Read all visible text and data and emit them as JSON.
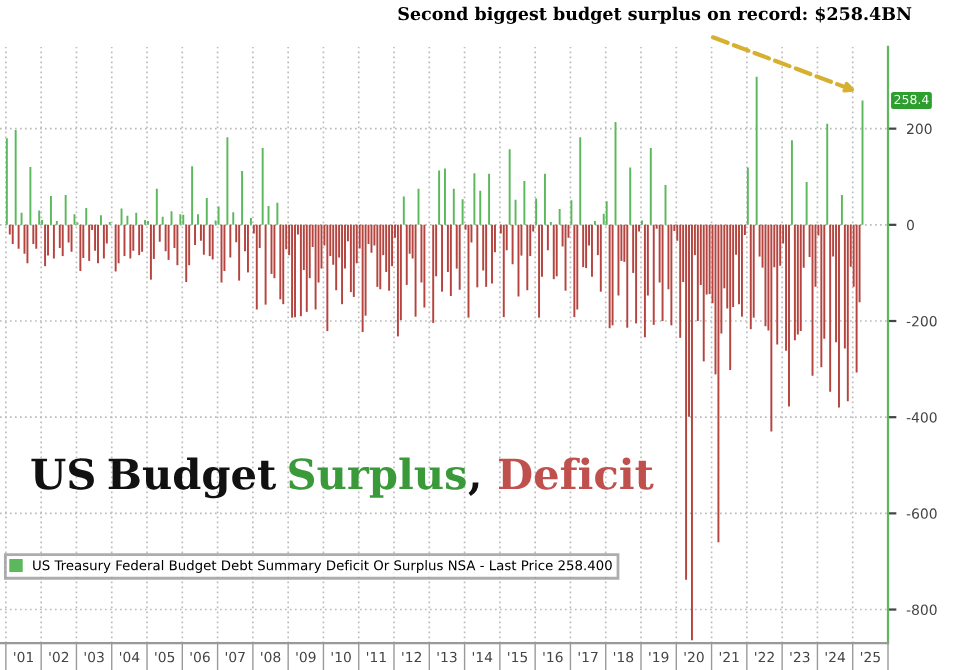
{
  "chart_data": {
    "type": "bar",
    "title": "US Budget Surplus, Deficit",
    "annotations": [
      {
        "text": "Second biggest budget surplus on record: $258.4BN",
        "x": "2025-04",
        "y": 258.4
      },
      {
        "text": "258.4",
        "x": "2025-04",
        "y": 258.4
      }
    ],
    "x": [
      "2001-01",
      "2001-02",
      "2001-03",
      "2001-04",
      "2001-05",
      "2001-06",
      "2001-07",
      "2001-08",
      "2001-09",
      "2001-10",
      "2001-11",
      "2001-12",
      "2002-01",
      "2002-02",
      "2002-03",
      "2002-04",
      "2002-05",
      "2002-06",
      "2002-07",
      "2002-08",
      "2002-09",
      "2002-10",
      "2002-11",
      "2002-12",
      "2003-01",
      "2003-02",
      "2003-03",
      "2003-04",
      "2003-05",
      "2003-06",
      "2003-07",
      "2003-08",
      "2003-09",
      "2003-10",
      "2003-11",
      "2003-12",
      "2004-01",
      "2004-02",
      "2004-03",
      "2004-04",
      "2004-05",
      "2004-06",
      "2004-07",
      "2004-08",
      "2004-09",
      "2004-10",
      "2004-11",
      "2004-12",
      "2005-01",
      "2005-02",
      "2005-03",
      "2005-04",
      "2005-05",
      "2005-06",
      "2005-07",
      "2005-08",
      "2005-09",
      "2005-10",
      "2005-11",
      "2005-12",
      "2006-01",
      "2006-02",
      "2006-03",
      "2006-04",
      "2006-05",
      "2006-06",
      "2006-07",
      "2006-08",
      "2006-09",
      "2006-10",
      "2006-11",
      "2006-12",
      "2007-01",
      "2007-02",
      "2007-03",
      "2007-04",
      "2007-05",
      "2007-06",
      "2007-07",
      "2007-08",
      "2007-09",
      "2007-10",
      "2007-11",
      "2007-12",
      "2008-01",
      "2008-02",
      "2008-03",
      "2008-04",
      "2008-05",
      "2008-06",
      "2008-07",
      "2008-08",
      "2008-09",
      "2008-10",
      "2008-11",
      "2008-12",
      "2009-01",
      "2009-02",
      "2009-03",
      "2009-04",
      "2009-05",
      "2009-06",
      "2009-07",
      "2009-08",
      "2009-09",
      "2009-10",
      "2009-11",
      "2009-12",
      "2010-01",
      "2010-02",
      "2010-03",
      "2010-04",
      "2010-05",
      "2010-06",
      "2010-07",
      "2010-08",
      "2010-09",
      "2010-10",
      "2010-11",
      "2010-12",
      "2011-01",
      "2011-02",
      "2011-03",
      "2011-04",
      "2011-05",
      "2011-06",
      "2011-07",
      "2011-08",
      "2011-09",
      "2011-10",
      "2011-11",
      "2011-12",
      "2012-01",
      "2012-02",
      "2012-03",
      "2012-04",
      "2012-05",
      "2012-06",
      "2012-07",
      "2012-08",
      "2012-09",
      "2012-10",
      "2012-11",
      "2012-12",
      "2013-01",
      "2013-02",
      "2013-03",
      "2013-04",
      "2013-05",
      "2013-06",
      "2013-07",
      "2013-08",
      "2013-09",
      "2013-10",
      "2013-11",
      "2013-12",
      "2014-01",
      "2014-02",
      "2014-03",
      "2014-04",
      "2014-05",
      "2014-06",
      "2014-07",
      "2014-08",
      "2014-09",
      "2014-10",
      "2014-11",
      "2014-12",
      "2015-01",
      "2015-02",
      "2015-03",
      "2015-04",
      "2015-05",
      "2015-06",
      "2015-07",
      "2015-08",
      "2015-09",
      "2015-10",
      "2015-11",
      "2015-12",
      "2016-01",
      "2016-02",
      "2016-03",
      "2016-04",
      "2016-05",
      "2016-06",
      "2016-07",
      "2016-08",
      "2016-09",
      "2016-10",
      "2016-11",
      "2016-12",
      "2017-01",
      "2017-02",
      "2017-03",
      "2017-04",
      "2017-05",
      "2017-06",
      "2017-07",
      "2017-08",
      "2017-09",
      "2017-10",
      "2017-11",
      "2017-12",
      "2018-01",
      "2018-02",
      "2018-03",
      "2018-04",
      "2018-05",
      "2018-06",
      "2018-07",
      "2018-08",
      "2018-09",
      "2018-10",
      "2018-11",
      "2018-12",
      "2019-01",
      "2019-02",
      "2019-03",
      "2019-04",
      "2019-05",
      "2019-06",
      "2019-07",
      "2019-08",
      "2019-09",
      "2019-10",
      "2019-11",
      "2019-12",
      "2020-01",
      "2020-02",
      "2020-03",
      "2020-04",
      "2020-05",
      "2020-06",
      "2020-07",
      "2020-08",
      "2020-09",
      "2020-10",
      "2020-11",
      "2020-12",
      "2021-01",
      "2021-02",
      "2021-03",
      "2021-04",
      "2021-05",
      "2021-06",
      "2021-07",
      "2021-08",
      "2021-09",
      "2021-10",
      "2021-11",
      "2021-12",
      "2022-01",
      "2022-02",
      "2022-03",
      "2022-04",
      "2022-05",
      "2022-06",
      "2022-07",
      "2022-08",
      "2022-09",
      "2022-10",
      "2022-11",
      "2022-12",
      "2023-01",
      "2023-02",
      "2023-03",
      "2023-04",
      "2023-05",
      "2023-06",
      "2023-07",
      "2023-08",
      "2023-09",
      "2023-10",
      "2023-11",
      "2023-12",
      "2024-01",
      "2024-02",
      "2024-03",
      "2024-04",
      "2024-05",
      "2024-06",
      "2024-07",
      "2024-08",
      "2024-09",
      "2024-10",
      "2024-11",
      "2024-12",
      "2025-01",
      "2025-02",
      "2025-03",
      "2025-04"
    ],
    "series": [
      {
        "name": "US Treasury Federal Budget Debt Summary Deficit Or Surplus NSA - Last Price 258.400",
        "color": "#5cb85c",
        "values": [
          180,
          null,
          null,
          197,
          null,
          25,
          null,
          null,
          120,
          null,
          null,
          30,
          10,
          null,
          null,
          60,
          null,
          8,
          null,
          null,
          62,
          null,
          null,
          22,
          5,
          null,
          null,
          35,
          null,
          null,
          null,
          null,
          20,
          null,
          null,
          6,
          null,
          null,
          null,
          34,
          null,
          19,
          null,
          null,
          25,
          null,
          null,
          10,
          8,
          null,
          null,
          75,
          null,
          17,
          null,
          null,
          28,
          null,
          null,
          22,
          21,
          null,
          null,
          122,
          null,
          22,
          null,
          null,
          56,
          null,
          null,
          9,
          38,
          null,
          null,
          182,
          null,
          26,
          null,
          null,
          112,
          null,
          null,
          14,
          null,
          null,
          null,
          160,
          null,
          39,
          null,
          null,
          46,
          null,
          null,
          null,
          null,
          null,
          null,
          null,
          null,
          null,
          null,
          null,
          null,
          null,
          null,
          null,
          null,
          null,
          null,
          null,
          null,
          null,
          null,
          null,
          null,
          null,
          null,
          null,
          null,
          null,
          null,
          null,
          null,
          null,
          null,
          null,
          null,
          null,
          null,
          null,
          null,
          null,
          null,
          59,
          null,
          null,
          null,
          null,
          75,
          null,
          null,
          null,
          null,
          null,
          null,
          113,
          null,
          117,
          null,
          null,
          75,
          null,
          null,
          53,
          null,
          null,
          null,
          107,
          null,
          71,
          null,
          null,
          106,
          null,
          null,
          null,
          null,
          null,
          null,
          157,
          null,
          52,
          null,
          null,
          91,
          null,
          null,
          null,
          55,
          null,
          null,
          106,
          null,
          6,
          null,
          null,
          33,
          null,
          null,
          null,
          51,
          null,
          null,
          182,
          null,
          null,
          null,
          null,
          8,
          null,
          null,
          23,
          49,
          null,
          null,
          214,
          null,
          null,
          null,
          null,
          119,
          null,
          null,
          null,
          9,
          null,
          null,
          160,
          null,
          null,
          null,
          null,
          83,
          null,
          null,
          null,
          null,
          null,
          null,
          null,
          null,
          null,
          null,
          null,
          null,
          null,
          null,
          null,
          null,
          null,
          null,
          null,
          null,
          null,
          null,
          null,
          null,
          null,
          null,
          null,
          119,
          null,
          null,
          308,
          null,
          null,
          null,
          null,
          null,
          null,
          null,
          null,
          null,
          null,
          null,
          176,
          null,
          null,
          null,
          null,
          89,
          null,
          null,
          null,
          null,
          null,
          null,
          210,
          null,
          null,
          null,
          null,
          62,
          null,
          null,
          null,
          null,
          null,
          null,
          258.4
        ]
      },
      {
        "color": "#b5443f",
        "values": [
          null,
          -20,
          -40,
          null,
          -50,
          null,
          -60,
          -80,
          null,
          -40,
          -50,
          null,
          null,
          -86,
          -64,
          null,
          -70,
          null,
          -48,
          -65,
          null,
          -37,
          -56,
          null,
          null,
          -96,
          -69,
          null,
          -75,
          -11,
          -54,
          -80,
          null,
          -70,
          -39,
          null,
          null,
          -97,
          -80,
          null,
          -65,
          null,
          -70,
          -54,
          null,
          -63,
          -56,
          null,
          null,
          -114,
          -71,
          null,
          -35,
          null,
          -55,
          -73,
          null,
          -48,
          -84,
          null,
          null,
          -119,
          -84,
          null,
          -42,
          null,
          -33,
          -62,
          null,
          -65,
          -72,
          null,
          null,
          -120,
          -96,
          null,
          -68,
          null,
          -36,
          -116,
          null,
          -55,
          -99,
          null,
          -18,
          -176,
          -48,
          null,
          -166,
          null,
          -102,
          -111,
          null,
          -155,
          -165,
          -51,
          -63,
          -193,
          -192,
          -20,
          -190,
          -94,
          -181,
          -111,
          -46,
          -176,
          -120,
          -91,
          -43,
          -221,
          -65,
          -83,
          -136,
          -68,
          -165,
          -91,
          -34,
          -140,
          -150,
          -80,
          -49,
          -223,
          -189,
          -40,
          -58,
          -43,
          -129,
          -134,
          -63,
          -98,
          -137,
          -86,
          -27,
          -232,
          -198,
          null,
          -125,
          -60,
          -70,
          -191,
          null,
          -120,
          -172,
          null,
          null,
          -204,
          -107,
          null,
          -139,
          null,
          -98,
          -148,
          null,
          -91,
          -135,
          null,
          -10,
          -193,
          -37,
          null,
          -130,
          null,
          -95,
          -129,
          null,
          -122,
          -57,
          null,
          -18,
          -192,
          -53,
          null,
          -82,
          null,
          -149,
          -64,
          null,
          -136,
          -65,
          -14,
          null,
          -193,
          -108,
          null,
          -53,
          null,
          -113,
          -107,
          null,
          -45,
          -137,
          -27,
          null,
          -192,
          -176,
          null,
          -88,
          -90,
          -43,
          -108,
          null,
          -63,
          -139,
          null,
          null,
          -215,
          -209,
          null,
          -147,
          -75,
          -77,
          -214,
          null,
          -100,
          -205,
          -14,
          null,
          -234,
          -147,
          null,
          -208,
          -8,
          -120,
          -200,
          null,
          -134,
          -209,
          -13,
          -33,
          -235,
          -119,
          -738,
          -399,
          -864,
          -63,
          -200,
          -125,
          -284,
          -145,
          -144,
          -163,
          -311,
          -660,
          -226,
          -132,
          -174,
          -302,
          -171,
          -62,
          -165,
          -191,
          -21,
          null,
          -217,
          -193,
          null,
          -66,
          -89,
          -211,
          -220,
          -430,
          -88,
          -249,
          -85,
          -39,
          -262,
          -378,
          null,
          -240,
          -228,
          -221,
          -89,
          null,
          -67,
          -314,
          -129,
          -22,
          -296,
          -237,
          null,
          -347,
          -66,
          -244,
          -380,
          null,
          -257,
          -367,
          -87,
          -129,
          -307,
          -161,
          null
        ]
      }
    ],
    "xlim": [
      "2000-11",
      "2026-01"
    ],
    "xticks": [
      {
        "value": "2001-01",
        "label": null
      },
      {
        "value": "2001-07",
        "label": "'01"
      },
      {
        "value": "2002-01",
        "label": null
      },
      {
        "value": "2002-07",
        "label": "'02"
      },
      {
        "value": "2003-01",
        "label": null
      },
      {
        "value": "2003-07",
        "label": "'03"
      },
      {
        "value": "2004-01",
        "label": null
      },
      {
        "value": "2004-07",
        "label": "'04"
      },
      {
        "value": "2005-01",
        "label": null
      },
      {
        "value": "2005-07",
        "label": "'05"
      },
      {
        "value": "2006-01",
        "label": null
      },
      {
        "value": "2006-07",
        "label": "'06"
      },
      {
        "value": "2007-01",
        "label": null
      },
      {
        "value": "2007-07",
        "label": "'07"
      },
      {
        "value": "2008-01",
        "label": null
      },
      {
        "value": "2008-07",
        "label": "'08"
      },
      {
        "value": "2009-01",
        "label": null
      },
      {
        "value": "2009-07",
        "label": "'09"
      },
      {
        "value": "2010-01",
        "label": null
      },
      {
        "value": "2010-07",
        "label": "'10"
      },
      {
        "value": "2011-01",
        "label": null
      },
      {
        "value": "2011-07",
        "label": "'11"
      },
      {
        "value": "2012-01",
        "label": null
      },
      {
        "value": "2012-07",
        "label": "'12"
      },
      {
        "value": "2013-01",
        "label": null
      },
      {
        "value": "2013-07",
        "label": "'13"
      },
      {
        "value": "2014-01",
        "label": null
      },
      {
        "value": "2014-07",
        "label": "'14"
      },
      {
        "value": "2015-01",
        "label": null
      },
      {
        "value": "2015-07",
        "label": "'15"
      },
      {
        "value": "2016-01",
        "label": null
      },
      {
        "value": "2016-07",
        "label": "'16"
      },
      {
        "value": "2017-01",
        "label": null
      },
      {
        "value": "2017-07",
        "label": "'17"
      },
      {
        "value": "2018-01",
        "label": null
      },
      {
        "value": "2018-07",
        "label": "'18"
      },
      {
        "value": "2019-01",
        "label": null
      },
      {
        "value": "2019-07",
        "label": "'19"
      },
      {
        "value": "2020-01",
        "label": null
      },
      {
        "value": "2020-07",
        "label": "'20"
      },
      {
        "value": "2021-01",
        "label": null
      },
      {
        "value": "2021-07",
        "label": "'21"
      },
      {
        "value": "2022-01",
        "label": null
      },
      {
        "value": "2022-07",
        "label": "'22"
      },
      {
        "value": "2023-01",
        "label": null
      },
      {
        "value": "2023-07",
        "label": "'23"
      },
      {
        "value": "2024-01",
        "label": null
      },
      {
        "value": "2024-07",
        "label": "'24"
      },
      {
        "value": "2025-01",
        "label": null
      },
      {
        "value": "2025-07",
        "label": "'25"
      },
      {
        "value": "2026-01",
        "label": null
      }
    ],
    "ylim": [
      -870,
      370
    ],
    "yticks": [
      -800,
      -600,
      -400,
      -200,
      0,
      200
    ],
    "grid": true,
    "legend": "bottom left"
  }
}
